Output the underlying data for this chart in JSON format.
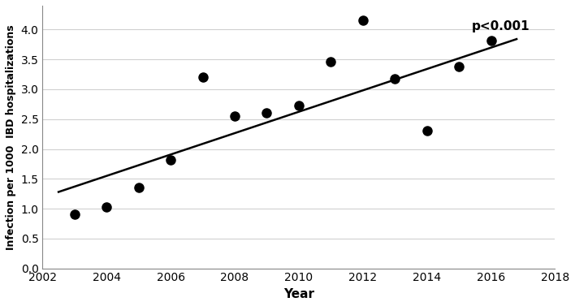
{
  "x_data": [
    2003,
    2004,
    2005,
    2006,
    2007,
    2008,
    2009,
    2010,
    2011,
    2012,
    2013,
    2014,
    2015,
    2016
  ],
  "y_data": [
    0.9,
    1.03,
    1.35,
    1.82,
    3.2,
    2.55,
    2.6,
    2.73,
    3.46,
    4.15,
    3.18,
    2.3,
    3.38,
    3.82
  ],
  "trend_x": [
    2002.5,
    2016.8
  ],
  "trend_y": [
    1.28,
    3.84
  ],
  "xlim": [
    2002,
    2018
  ],
  "ylim": [
    0.0,
    4.4
  ],
  "xticks": [
    2002,
    2004,
    2006,
    2008,
    2010,
    2012,
    2014,
    2016,
    2018
  ],
  "yticks": [
    0.0,
    0.5,
    1.0,
    1.5,
    2.0,
    2.5,
    3.0,
    3.5,
    4.0
  ],
  "xlabel": "Year",
  "ylabel": "Infection per 1000  IBD hospitalizations",
  "pvalue_text": "p<0.001",
  "pvalue_x": 2017.2,
  "pvalue_y": 4.05,
  "marker_color": "#000000",
  "line_color": "#000000",
  "bg_color": "#ffffff",
  "grid_color": "#d0d0d0",
  "marker_size": 8,
  "line_width": 1.8
}
